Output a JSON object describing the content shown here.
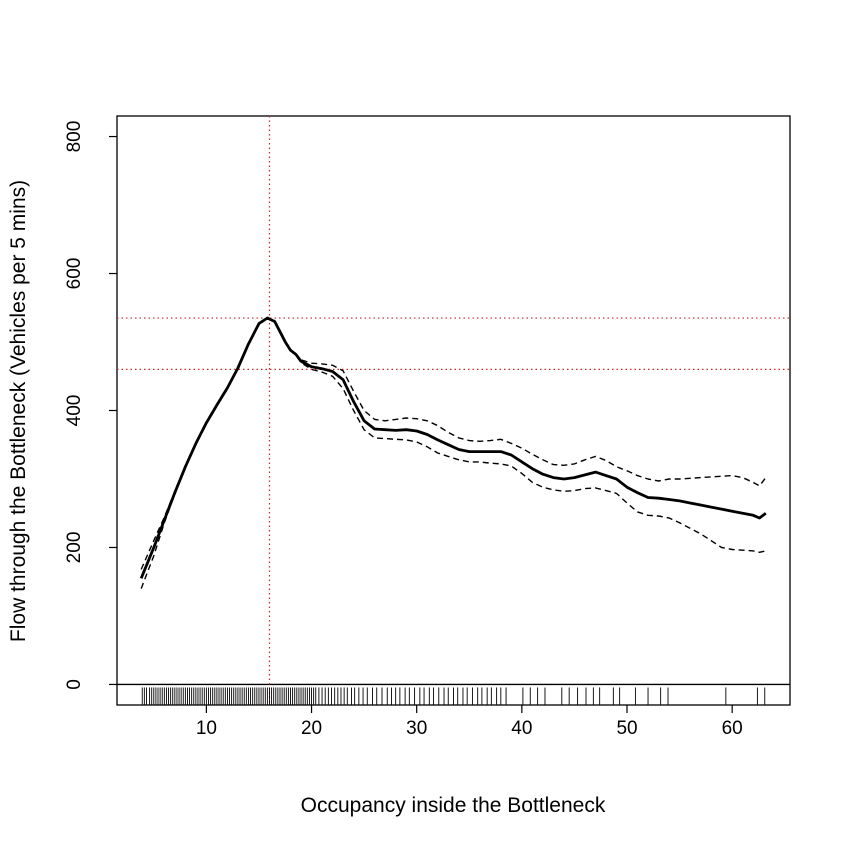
{
  "chart_data": {
    "type": "line",
    "title": "",
    "xlabel": "Occupancy inside the Bottleneck",
    "ylabel": "Flow through the Bottleneck (Vehicles per 5 mins)",
    "xlim": [
      1.5,
      65.5
    ],
    "ylim": [
      -30,
      830
    ],
    "x_ticks": [
      10,
      20,
      30,
      40,
      50,
      60
    ],
    "y_ticks": [
      0,
      200,
      400,
      600,
      800
    ],
    "grid": false,
    "legend": "none",
    "series": [
      {
        "style": "solid",
        "color": "#000000",
        "x": [
          3.8,
          5,
          6,
          7,
          8,
          9,
          10,
          11,
          12,
          13,
          14,
          15,
          15.8,
          16.5,
          17,
          17.5,
          18,
          18.5,
          19,
          20,
          21,
          22,
          23,
          24,
          25,
          26,
          27,
          28,
          29,
          30,
          31,
          32,
          33,
          34,
          35,
          36,
          37,
          38,
          39,
          40,
          41,
          42,
          43,
          44,
          45,
          46,
          47,
          48,
          49,
          50,
          51,
          52,
          53,
          54,
          55,
          56,
          57,
          58,
          59,
          60,
          61,
          62,
          62.6,
          63.2
        ],
        "y": [
          155,
          200,
          240,
          280,
          318,
          352,
          382,
          408,
          433,
          462,
          497,
          527,
          535,
          530,
          515,
          500,
          488,
          482,
          472,
          464,
          461,
          457,
          445,
          413,
          385,
          373,
          372,
          371,
          372,
          370,
          365,
          357,
          350,
          343,
          340,
          340,
          340,
          340,
          335,
          325,
          315,
          307,
          302,
          300,
          302,
          306,
          310,
          305,
          300,
          288,
          280,
          273,
          272,
          270,
          268,
          265,
          262,
          259,
          256,
          253,
          250,
          247,
          243,
          250
        ]
      },
      {
        "style": "dashed",
        "color": "#000000",
        "x": [
          3.8,
          5,
          6,
          7,
          8,
          9,
          10,
          11,
          12,
          13,
          14,
          15,
          15.8,
          16.5,
          17,
          17.5,
          18,
          18.5,
          19,
          20,
          21,
          22,
          23,
          24,
          25,
          26,
          27,
          28,
          29,
          30,
          31,
          32,
          33,
          34,
          35,
          36,
          37,
          38,
          39,
          40,
          41,
          42,
          43,
          44,
          45,
          46,
          47,
          48,
          49,
          50,
          51,
          52,
          53,
          54,
          55,
          56,
          57,
          58,
          59,
          60,
          61,
          62,
          62.6,
          63.2
        ],
        "y": [
          168,
          210,
          244,
          282,
          319,
          353,
          383,
          409,
          434,
          463,
          498,
          528,
          536,
          531,
          516,
          501,
          489,
          483,
          474,
          469,
          468,
          466,
          458,
          428,
          400,
          387,
          385,
          387,
          389,
          388,
          385,
          378,
          368,
          360,
          356,
          355,
          356,
          358,
          352,
          345,
          336,
          328,
          321,
          320,
          322,
          328,
          333,
          327,
          318,
          312,
          305,
          300,
          297,
          300,
          300,
          301,
          302,
          303,
          304,
          305,
          302,
          295,
          290,
          302
        ]
      },
      {
        "style": "dashed",
        "color": "#000000",
        "x": [
          3.8,
          5,
          6,
          7,
          8,
          9,
          10,
          11,
          12,
          13,
          14,
          15,
          15.8,
          16.5,
          17,
          17.5,
          18,
          18.5,
          19,
          20,
          21,
          22,
          23,
          24,
          25,
          26,
          27,
          28,
          29,
          30,
          31,
          32,
          33,
          34,
          35,
          36,
          37,
          38,
          39,
          40,
          41,
          42,
          43,
          44,
          45,
          46,
          47,
          48,
          49,
          50,
          51,
          52,
          53,
          54,
          55,
          56,
          57,
          58,
          59,
          60,
          61,
          62,
          62.6,
          63.2
        ],
        "y": [
          140,
          188,
          236,
          278,
          317,
          351,
          381,
          407,
          432,
          461,
          496,
          526,
          534,
          529,
          514,
          499,
          487,
          481,
          470,
          460,
          456,
          450,
          432,
          400,
          372,
          360,
          359,
          358,
          357,
          354,
          347,
          338,
          333,
          328,
          325,
          325,
          323,
          322,
          319,
          308,
          295,
          288,
          284,
          282,
          283,
          286,
          287,
          283,
          279,
          265,
          252,
          247,
          246,
          243,
          236,
          228,
          220,
          210,
          200,
          197,
          196,
          195,
          193,
          195
        ]
      }
    ],
    "reference_lines": {
      "color": "#cd2626",
      "style": "dotted",
      "vertical_x": [
        16
      ],
      "horizontal_y": [
        535,
        460
      ]
    },
    "rug": {
      "position": "bottom",
      "x": [
        3.9,
        4.1,
        4.3,
        4.6,
        4.8,
        5.0,
        5.2,
        5.4,
        5.6,
        5.8,
        6.0,
        6.2,
        6.4,
        6.6,
        6.8,
        7.0,
        7.2,
        7.4,
        7.6,
        7.8,
        8.0,
        8.2,
        8.4,
        8.6,
        8.8,
        9.0,
        9.2,
        9.4,
        9.6,
        9.8,
        10.0,
        10.2,
        10.4,
        10.6,
        10.8,
        11.0,
        11.2,
        11.4,
        11.6,
        11.8,
        12.0,
        12.2,
        12.4,
        12.6,
        12.8,
        13.0,
        13.2,
        13.4,
        13.6,
        13.8,
        14.0,
        14.2,
        14.4,
        14.6,
        14.8,
        15.0,
        15.2,
        15.4,
        15.6,
        15.8,
        16.0,
        16.2,
        16.4,
        16.6,
        16.8,
        17.0,
        17.2,
        17.4,
        17.6,
        17.8,
        18.0,
        18.2,
        18.4,
        18.6,
        18.8,
        19.0,
        19.2,
        19.4,
        19.6,
        19.8,
        20.0,
        20.2,
        20.4,
        20.7,
        21.0,
        21.3,
        21.6,
        21.9,
        22.2,
        22.5,
        22.8,
        23.1,
        23.4,
        23.8,
        24.1,
        24.5,
        24.9,
        25.3,
        25.8,
        26.2,
        26.7,
        27.2,
        27.6,
        28.0,
        28.4,
        28.9,
        29.3,
        29.8,
        30.3,
        30.7,
        31.2,
        31.6,
        32.1,
        32.6,
        33.0,
        33.5,
        33.9,
        34.4,
        34.8,
        35.3,
        35.8,
        36.2,
        36.7,
        37.1,
        37.6,
        38.0,
        38.5,
        40.1,
        40.8,
        41.5,
        42.2,
        43.8,
        44.5,
        45.3,
        46.1,
        46.8,
        47.4,
        48.7,
        49.3,
        50.8,
        52.0,
        53.2,
        53.9,
        59.4,
        62.4,
        63.1
      ]
    }
  }
}
